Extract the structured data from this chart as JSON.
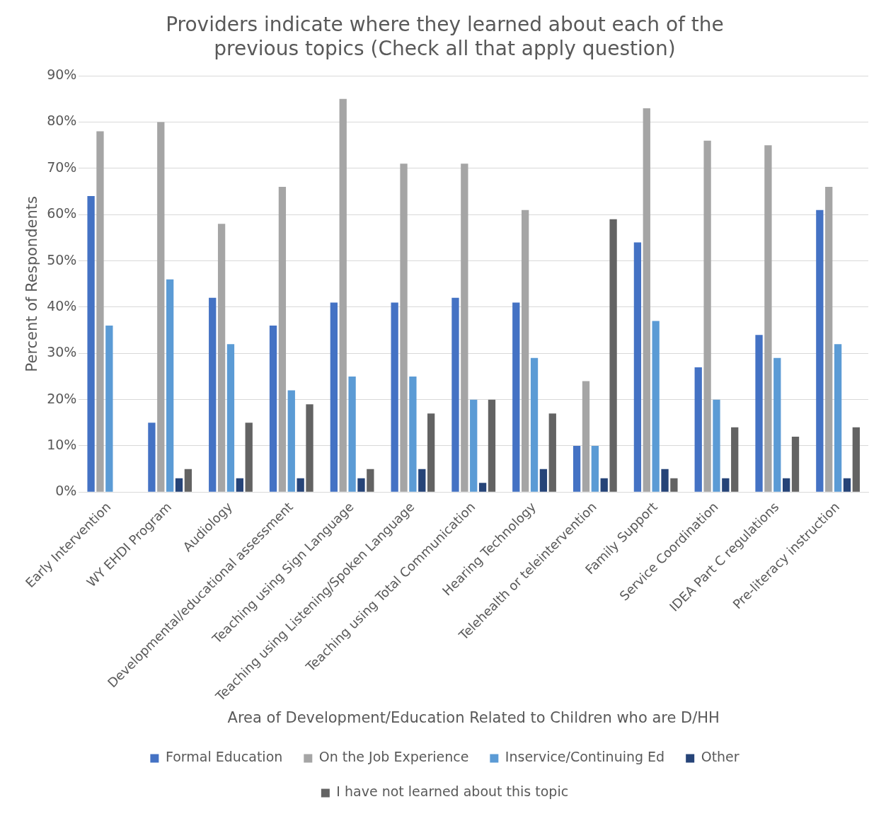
{
  "chart_data": {
    "type": "bar",
    "title": "Providers indicate where they learned about each of the previous topics (Check all that apply question)",
    "xlabel": "Area of Development/Education Related to Children who are D/HH",
    "ylabel": "Percent of Respondents",
    "categories": [
      "Early Intervention",
      "WY EHDI Program",
      "Audiology",
      "Developmental/educational assessment",
      "Teaching using Sign Language",
      "Teaching using Listening/Spoken Language",
      "Teaching using Total Communication",
      "Hearing Technology",
      "Telehealth or teleintervention",
      "Family Support",
      "Service Coordination",
      "IDEA Part C regulations",
      "Pre-literacy instruction"
    ],
    "series": [
      {
        "name": "Formal Education",
        "color": "#4472c4",
        "values": [
          64,
          15,
          42,
          36,
          41,
          41,
          42,
          41,
          10,
          54,
          27,
          34,
          61
        ]
      },
      {
        "name": "On the Job Experience",
        "color": "#a5a5a5",
        "values": [
          78,
          80,
          58,
          66,
          85,
          71,
          71,
          61,
          24,
          83,
          76,
          75,
          66
        ]
      },
      {
        "name": "Inservice/Continuing Ed",
        "color": "#5b9bd5",
        "values": [
          36,
          46,
          32,
          22,
          25,
          25,
          20,
          29,
          10,
          37,
          20,
          29,
          32
        ]
      },
      {
        "name": "Other",
        "color": "#264478",
        "values": [
          0,
          3,
          3,
          3,
          3,
          5,
          2,
          5,
          3,
          5,
          3,
          3,
          3
        ]
      },
      {
        "name": "I have not learned about this topic",
        "color": "#636363",
        "values": [
          0,
          5,
          15,
          19,
          5,
          17,
          20,
          17,
          59,
          3,
          14,
          12,
          14
        ]
      }
    ],
    "ylim": [
      0,
      90
    ],
    "yticks": [
      {
        "value": 0,
        "label": "0%"
      },
      {
        "value": 10,
        "label": "10%"
      },
      {
        "value": 20,
        "label": "20%"
      },
      {
        "value": 30,
        "label": "30%"
      },
      {
        "value": 40,
        "label": "40%"
      },
      {
        "value": 50,
        "label": "50%"
      },
      {
        "value": 60,
        "label": "60%"
      },
      {
        "value": 70,
        "label": "70%"
      },
      {
        "value": 80,
        "label": "80%"
      },
      {
        "value": 90,
        "label": "90%"
      }
    ],
    "grid": "y",
    "legend": "bottom"
  }
}
